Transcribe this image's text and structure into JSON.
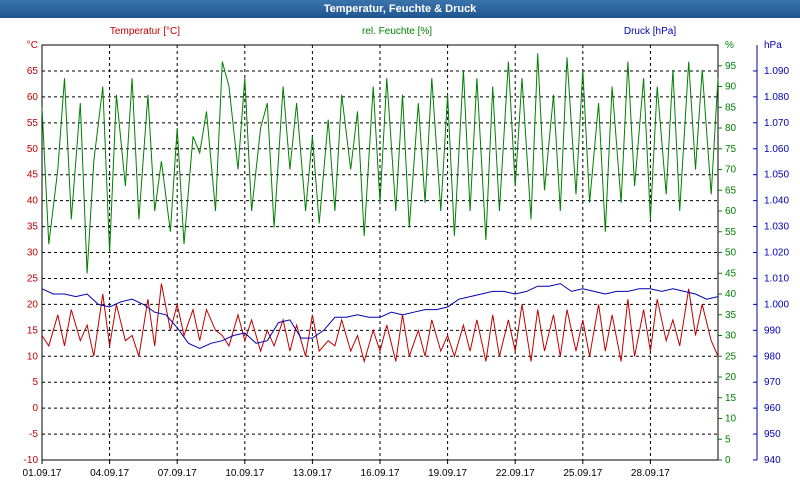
{
  "window": {
    "title": "Temperatur, Feuchte & Druck"
  },
  "chart_data": {
    "type": "line",
    "title": "Temperatur, Feuchte & Druck",
    "x_start": "01.09.17",
    "x_end": "01.10.17",
    "x_ticks": [
      "01.09.17",
      "04.09.17",
      "07.09.17",
      "10.09.17",
      "13.09.17",
      "16.09.17",
      "19.09.17",
      "22.09.17",
      "25.09.17",
      "28.09.17"
    ],
    "grid": true,
    "axes": {
      "temp": {
        "label": "Temperatur [°C]",
        "unit": "°C",
        "color": "#c00000",
        "min": -10,
        "max": 70,
        "ticks": [
          -10,
          -5,
          0,
          5,
          10,
          15,
          20,
          25,
          30,
          35,
          40,
          45,
          50,
          55,
          60,
          65
        ]
      },
      "hum": {
        "label": "rel. Feuchte [%]",
        "unit": "%",
        "color": "#008000",
        "min": 0,
        "max": 100,
        "ticks": [
          0,
          5,
          10,
          15,
          20,
          25,
          30,
          35,
          40,
          45,
          50,
          55,
          60,
          65,
          70,
          75,
          80,
          85,
          90,
          95
        ]
      },
      "press": {
        "label": "Druck [hPa]",
        "unit": "hPa",
        "color": "#0000b4",
        "min": 940,
        "max": 1100,
        "ticks": [
          "940",
          "950",
          "960",
          "970",
          "980",
          "990",
          "1.000",
          "1.010",
          "1.020",
          "1.030",
          "1.040",
          "1.050",
          "1.060",
          "1.070",
          "1.080",
          "1.090"
        ]
      }
    },
    "series": [
      {
        "name": "Temperatur [°C]",
        "axis": "temp",
        "color": "#c00000",
        "x": [
          0,
          0.3,
          0.7,
          1.0,
          1.3,
          1.7,
          2.0,
          2.3,
          2.7,
          3.0,
          3.3,
          3.7,
          4.0,
          4.3,
          4.7,
          5.0,
          5.3,
          5.7,
          6.0,
          6.3,
          6.7,
          7.0,
          7.3,
          7.7,
          8.0,
          8.3,
          8.7,
          9.0,
          9.3,
          9.7,
          10.0,
          10.3,
          10.7,
          11.0,
          11.3,
          11.7,
          12.0,
          12.3,
          12.7,
          13.0,
          13.3,
          13.7,
          14.0,
          14.3,
          14.7,
          15.0,
          15.3,
          15.7,
          16.0,
          16.3,
          16.7,
          17.0,
          17.3,
          17.7,
          18.0,
          18.3,
          18.7,
          19.0,
          19.3,
          19.7,
          20.0,
          20.3,
          20.7,
          21.0,
          21.3,
          21.7,
          22.0,
          22.3,
          22.7,
          23.0,
          23.3,
          23.7,
          24.0,
          24.3,
          24.7,
          25.0,
          25.3,
          25.7,
          26.0,
          26.3,
          26.7,
          27.0,
          27.3,
          27.7,
          28.0,
          28.3,
          28.7,
          29.0,
          29.3,
          29.7,
          30.0
        ],
        "values": [
          14,
          12,
          18,
          12,
          19,
          13,
          16,
          10,
          22,
          12,
          20,
          13,
          14,
          10,
          21,
          12,
          24,
          15,
          20,
          14,
          19,
          13,
          19,
          15,
          14,
          12,
          18,
          13,
          17,
          11,
          15,
          12,
          17,
          11,
          16,
          10,
          18,
          11,
          13,
          12,
          17,
          11,
          14,
          9,
          15,
          11,
          16,
          9,
          18,
          10,
          15,
          10,
          17,
          11,
          14,
          10,
          16,
          11,
          17,
          9,
          18,
          10,
          17,
          11,
          20,
          9,
          19,
          11,
          18,
          10,
          19,
          11,
          17,
          10,
          20,
          11,
          18,
          9,
          21,
          10,
          19,
          11,
          21,
          13,
          17,
          12,
          23,
          14,
          20,
          13,
          10
        ]
      },
      {
        "name": "rel. Feuchte [%]",
        "axis": "hum",
        "color": "#008000",
        "x": [
          0,
          0.3,
          0.7,
          1.0,
          1.3,
          1.7,
          2.0,
          2.3,
          2.7,
          3.0,
          3.3,
          3.7,
          4.0,
          4.3,
          4.7,
          5.0,
          5.3,
          5.7,
          6.0,
          6.3,
          6.7,
          7.0,
          7.3,
          7.7,
          8.0,
          8.3,
          8.7,
          9.0,
          9.3,
          9.7,
          10.0,
          10.3,
          10.7,
          11.0,
          11.3,
          11.7,
          12.0,
          12.3,
          12.7,
          13.0,
          13.3,
          13.7,
          14.0,
          14.3,
          14.7,
          15.0,
          15.3,
          15.7,
          16.0,
          16.3,
          16.7,
          17.0,
          17.3,
          17.7,
          18.0,
          18.3,
          18.7,
          19.0,
          19.3,
          19.7,
          20.0,
          20.3,
          20.7,
          21.0,
          21.3,
          21.7,
          22.0,
          22.3,
          22.7,
          23.0,
          23.3,
          23.7,
          24.0,
          24.3,
          24.7,
          25.0,
          25.3,
          25.7,
          26.0,
          26.3,
          26.7,
          27.0,
          27.3,
          27.7,
          28.0,
          28.3,
          28.7,
          29.0,
          29.3,
          29.7,
          30.0
        ],
        "values": [
          85,
          52,
          70,
          92,
          58,
          86,
          45,
          72,
          90,
          50,
          88,
          66,
          92,
          58,
          88,
          60,
          72,
          55,
          80,
          52,
          78,
          74,
          84,
          60,
          96,
          90,
          70,
          92,
          60,
          80,
          86,
          56,
          90,
          70,
          86,
          60,
          78,
          57,
          82,
          60,
          88,
          70,
          84,
          54,
          90,
          62,
          92,
          60,
          88,
          56,
          86,
          62,
          92,
          60,
          88,
          54,
          94,
          60,
          92,
          53,
          90,
          60,
          96,
          66,
          92,
          58,
          98,
          65,
          88,
          60,
          97,
          64,
          94,
          62,
          86,
          55,
          90,
          62,
          96,
          66,
          92,
          58,
          90,
          64,
          94,
          60,
          96,
          70,
          94,
          64,
          92
        ]
      },
      {
        "name": "Druck [hPa]",
        "axis": "press",
        "color": "#0000b4",
        "x": [
          0,
          0.5,
          1.0,
          1.5,
          2.0,
          2.5,
          3.0,
          3.5,
          4.0,
          4.5,
          5.0,
          5.5,
          6.0,
          6.5,
          7.0,
          7.5,
          8.0,
          8.5,
          9.0,
          9.5,
          10.0,
          10.5,
          11.0,
          11.5,
          12.0,
          12.5,
          13.0,
          13.5,
          14.0,
          14.5,
          15.0,
          15.5,
          16.0,
          16.5,
          17.0,
          17.5,
          18.0,
          18.5,
          19.0,
          19.5,
          20.0,
          20.5,
          21.0,
          21.5,
          22.0,
          22.5,
          23.0,
          23.5,
          24.0,
          24.5,
          25.0,
          25.5,
          26.0,
          26.5,
          27.0,
          27.5,
          28.0,
          28.5,
          29.0,
          29.5,
          30.0
        ],
        "values": [
          1006,
          1004,
          1004,
          1003,
          1004,
          1000,
          999,
          1001,
          1002,
          1000,
          997,
          996,
          991,
          985,
          983,
          985,
          986,
          988,
          989,
          985,
          986,
          993,
          994,
          987,
          987,
          990,
          995,
          995,
          996,
          995,
          995,
          997,
          996,
          997,
          998,
          998,
          999,
          1002,
          1003,
          1004,
          1005,
          1005,
          1004,
          1005,
          1007,
          1007,
          1008,
          1005,
          1006,
          1005,
          1004,
          1005,
          1005,
          1006,
          1006,
          1005,
          1006,
          1005,
          1004,
          1002,
          1003
        ]
      }
    ]
  }
}
